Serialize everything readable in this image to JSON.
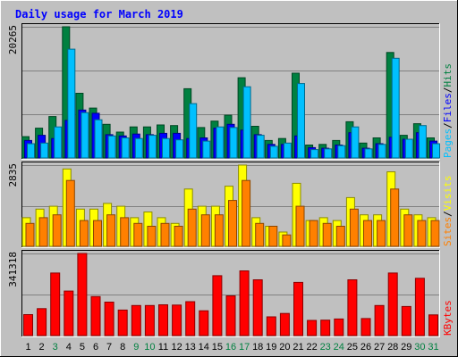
{
  "chart_data": [
    {
      "type": "bar",
      "panel": "hits-files-pages",
      "title": "Daily usage for March 2019",
      "categories": [
        "1",
        "2",
        "3",
        "4",
        "5",
        "6",
        "7",
        "8",
        "9",
        "10",
        "11",
        "12",
        "13",
        "14",
        "15",
        "16",
        "17",
        "18",
        "19",
        "20",
        "21",
        "22",
        "23",
        "24",
        "25",
        "26",
        "27",
        "28",
        "29",
        "30",
        "31"
      ],
      "weekend_days": [
        "3",
        "9",
        "10",
        "16",
        "17",
        "23",
        "24",
        "30",
        "31"
      ],
      "ymax_label": "20265",
      "ylim": [
        0,
        20265
      ],
      "series": [
        {
          "name": "Hits",
          "color": "#008040",
          "values": [
            3300,
            4600,
            6400,
            20265,
            10000,
            7700,
            5200,
            4000,
            4800,
            4800,
            5100,
            5000,
            10700,
            4700,
            5700,
            6600,
            12400,
            4900,
            2700,
            3000,
            13100,
            2000,
            2100,
            2700,
            5600,
            2300,
            3100,
            16300,
            3500,
            5300,
            3100
          ]
        },
        {
          "name": "Files",
          "color": "#0000ff",
          "values": [
            2700,
            3500,
            3000,
            5800,
            7400,
            6900,
            3600,
            3400,
            3700,
            3600,
            3800,
            3800,
            3000,
            3100,
            4600,
            5200,
            4300,
            3600,
            2100,
            2100,
            3400,
            1600,
            1500,
            2000,
            3900,
            1500,
            2200,
            3200,
            2900,
            3900,
            2600
          ]
        },
        {
          "name": "Pages",
          "color": "#00c0ff",
          "values": [
            2200,
            2300,
            4800,
            16800,
            7000,
            5900,
            3400,
            3100,
            3000,
            3500,
            3000,
            2800,
            8400,
            2600,
            4800,
            4700,
            11000,
            3500,
            1800,
            2300,
            11500,
            1300,
            1400,
            1900,
            4800,
            1400,
            2100,
            15400,
            2900,
            5000,
            2200
          ]
        }
      ]
    },
    {
      "type": "bar",
      "panel": "visits-sites",
      "categories": [
        "1",
        "2",
        "3",
        "4",
        "5",
        "6",
        "7",
        "8",
        "9",
        "10",
        "11",
        "12",
        "13",
        "14",
        "15",
        "16",
        "17",
        "18",
        "19",
        "20",
        "21",
        "22",
        "23",
        "24",
        "25",
        "26",
        "27",
        "28",
        "29",
        "30",
        "31"
      ],
      "ymax_label": "2835",
      "ylim": [
        0,
        2835
      ],
      "series": [
        {
          "name": "Visits",
          "color": "#ffff00",
          "values": [
            1000,
            1300,
            1400,
            2700,
            1300,
            1300,
            1500,
            1400,
            1000,
            1200,
            1000,
            800,
            2000,
            1400,
            1400,
            2100,
            2835,
            1000,
            700,
            500,
            2200,
            900,
            1000,
            900,
            1700,
            1100,
            1100,
            2600,
            1300,
            1100,
            1000
          ]
        },
        {
          "name": "Sites",
          "color": "#ff8000",
          "values": [
            800,
            1000,
            1100,
            2300,
            900,
            900,
            1100,
            1000,
            800,
            700,
            800,
            700,
            1300,
            1100,
            1100,
            1600,
            2300,
            800,
            700,
            400,
            1400,
            900,
            800,
            700,
            1300,
            900,
            900,
            2000,
            1100,
            900,
            900
          ]
        }
      ]
    },
    {
      "type": "bar",
      "panel": "kbytes",
      "categories": [
        "1",
        "2",
        "3",
        "4",
        "5",
        "6",
        "7",
        "8",
        "9",
        "10",
        "11",
        "12",
        "13",
        "14",
        "15",
        "16",
        "17",
        "18",
        "19",
        "20",
        "21",
        "22",
        "23",
        "24",
        "25",
        "26",
        "27",
        "28",
        "29",
        "30",
        "31"
      ],
      "ymax_label": "341318",
      "ylim": [
        0,
        341318
      ],
      "series": [
        {
          "name": "KBytes",
          "color": "#ff0000",
          "values": [
            87000,
            112000,
            260000,
            185000,
            341318,
            162000,
            139000,
            106000,
            125000,
            125000,
            128000,
            127000,
            141000,
            103000,
            249000,
            165000,
            269000,
            232000,
            78000,
            92000,
            221000,
            63000,
            64000,
            69000,
            232000,
            71000,
            125000,
            260000,
            121000,
            238000,
            86000
          ]
        }
      ]
    }
  ]
}
